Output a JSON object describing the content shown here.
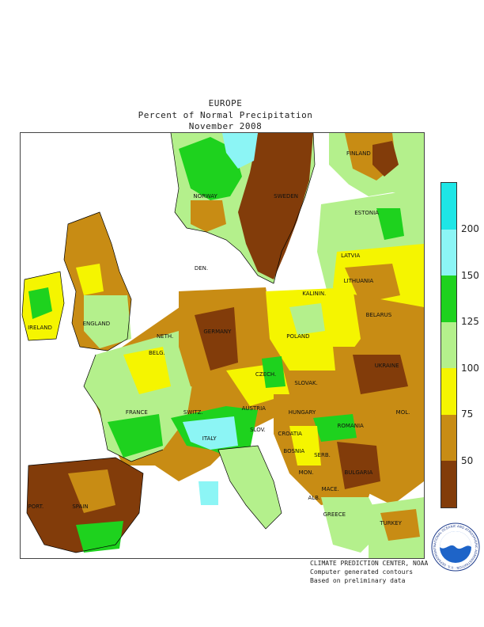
{
  "title": {
    "line1": "EUROPE",
    "line2": "Percent of Normal Precipitation",
    "line3": "November 2008"
  },
  "legend": {
    "ticks": [
      "200",
      "150",
      "125",
      "100",
      "75",
      "50"
    ],
    "colors": {
      "c200": "#1ee6e6",
      "c150": "#8cf5f5",
      "c125": "#1ed21e",
      "c100": "#b4f08c",
      "c75": "#f5f500",
      "c50": "#c88c14",
      "c0": "#823c0a"
    }
  },
  "places": [
    {
      "name": "FINLAND",
      "nx": 0.84,
      "ny": 0.05
    },
    {
      "name": "NORWAY",
      "nx": 0.46,
      "ny": 0.15
    },
    {
      "name": "SWEDEN",
      "nx": 0.66,
      "ny": 0.15
    },
    {
      "name": "ESTONIA",
      "nx": 0.86,
      "ny": 0.19
    },
    {
      "name": "LATVIA",
      "nx": 0.82,
      "ny": 0.29
    },
    {
      "name": "LITHUANIA",
      "nx": 0.84,
      "ny": 0.35
    },
    {
      "name": "DEN.",
      "nx": 0.45,
      "ny": 0.32
    },
    {
      "name": "KALININ.",
      "nx": 0.73,
      "ny": 0.38
    },
    {
      "name": "BELARUS",
      "nx": 0.89,
      "ny": 0.43
    },
    {
      "name": "IRELAND",
      "nx": 0.05,
      "ny": 0.46
    },
    {
      "name": "ENGLAND",
      "nx": 0.19,
      "ny": 0.45
    },
    {
      "name": "NETH.",
      "nx": 0.36,
      "ny": 0.48
    },
    {
      "name": "GERMANY",
      "nx": 0.49,
      "ny": 0.47
    },
    {
      "name": "POLAND",
      "nx": 0.69,
      "ny": 0.48
    },
    {
      "name": "BELG.",
      "nx": 0.34,
      "ny": 0.52
    },
    {
      "name": "CZECH.",
      "nx": 0.61,
      "ny": 0.57
    },
    {
      "name": "UKRAINE",
      "nx": 0.91,
      "ny": 0.55
    },
    {
      "name": "SLOVAK.",
      "nx": 0.71,
      "ny": 0.59
    },
    {
      "name": "FRANCE",
      "nx": 0.29,
      "ny": 0.66
    },
    {
      "name": "SWITZ.",
      "nx": 0.43,
      "ny": 0.66
    },
    {
      "name": "AUSTRIA",
      "nx": 0.58,
      "ny": 0.65
    },
    {
      "name": "HUNGARY",
      "nx": 0.7,
      "ny": 0.66
    },
    {
      "name": "MOL.",
      "nx": 0.95,
      "ny": 0.66
    },
    {
      "name": "ITALY",
      "nx": 0.47,
      "ny": 0.72
    },
    {
      "name": "SLOV.",
      "nx": 0.59,
      "ny": 0.7
    },
    {
      "name": "CROATIA",
      "nx": 0.67,
      "ny": 0.71
    },
    {
      "name": "ROMANIA",
      "nx": 0.82,
      "ny": 0.69
    },
    {
      "name": "BOSNIA",
      "nx": 0.68,
      "ny": 0.75
    },
    {
      "name": "SERB.",
      "nx": 0.75,
      "ny": 0.76
    },
    {
      "name": "BULGARIA",
      "nx": 0.84,
      "ny": 0.8
    },
    {
      "name": "MON.",
      "nx": 0.71,
      "ny": 0.8
    },
    {
      "name": "MACE.",
      "nx": 0.77,
      "ny": 0.84
    },
    {
      "name": "ALB.",
      "nx": 0.73,
      "ny": 0.86
    },
    {
      "name": "PORT.",
      "nx": 0.04,
      "ny": 0.88
    },
    {
      "name": "SPAIN",
      "nx": 0.15,
      "ny": 0.88
    },
    {
      "name": "GREECE",
      "nx": 0.78,
      "ny": 0.9
    },
    {
      "name": "TURKEY",
      "nx": 0.92,
      "ny": 0.92
    }
  ],
  "credits": {
    "line1": "CLIMATE PREDICTION CENTER, NOAA",
    "line2": "Computer generated contours",
    "line3": "Based on preliminary data"
  },
  "logo": {
    "text": "NOAA",
    "ring_text": "NATIONAL OCEANIC AND ATMOSPHERIC ADMINISTRATION · U.S. DEPARTMENT OF COMMERCE",
    "icon": "noaa-logo-icon"
  }
}
